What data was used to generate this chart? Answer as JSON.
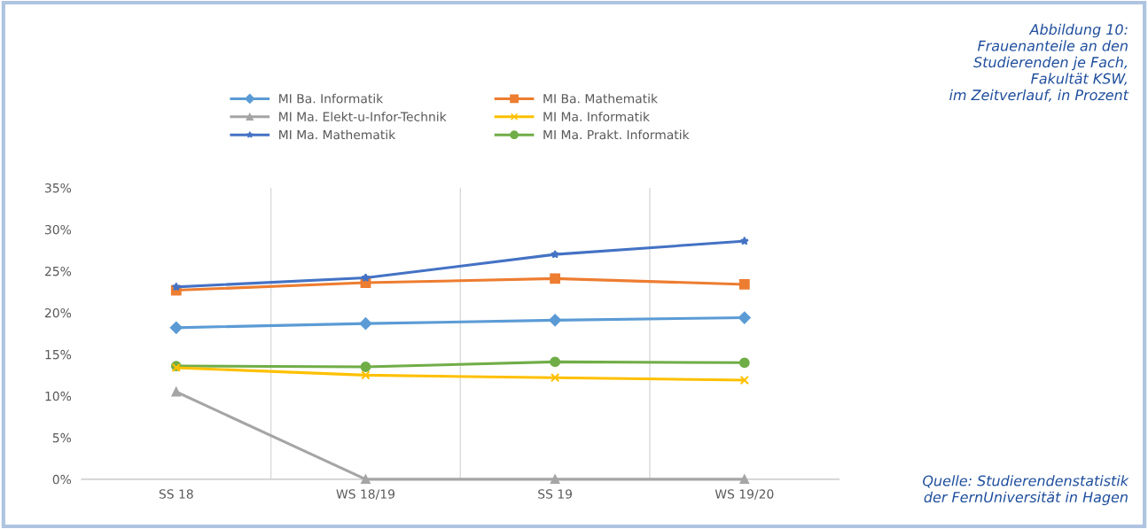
{
  "chart_data": {
    "type": "line",
    "title": "Abbildung 10:\nFrauenanteile an den\nStudierenden je Fach,\nFakultät KSW,\nim Zeitverlauf, in Prozent",
    "annotations": [
      "Quelle: Studierendenstatistik\nder FernUniversität in Hagen"
    ],
    "categories": [
      "SS 18",
      "WS 18/19",
      "SS 19",
      "WS 19/20"
    ],
    "series": [
      {
        "name": "MI Ba. Informatik",
        "color": "#5b9bd5",
        "marker": "diamond",
        "values": [
          18.2,
          18.7,
          19.1,
          19.4
        ]
      },
      {
        "name": "MI Ba. Mathematik",
        "color": "#ed7d31",
        "marker": "square",
        "values": [
          22.7,
          23.6,
          24.1,
          23.4
        ]
      },
      {
        "name": "MI Ma. Elekt-u-Infor-Technik",
        "color": "#a5a5a5",
        "marker": "triangle",
        "values": [
          10.5,
          0,
          0,
          0
        ]
      },
      {
        "name": "MI Ma. Informatik",
        "color": "#ffc000",
        "marker": "cross",
        "values": [
          13.4,
          12.5,
          12.2,
          11.9
        ]
      },
      {
        "name": "MI Ma. Mathematik",
        "color": "#4472c4",
        "marker": "star",
        "values": [
          23.1,
          24.2,
          27.0,
          28.6
        ]
      },
      {
        "name": "MI Ma. Prakt. Informatik",
        "color": "#70ad47",
        "marker": "circle",
        "values": [
          13.6,
          13.5,
          14.1,
          14.0
        ]
      }
    ],
    "ylim": [
      0,
      35
    ],
    "yticks": [
      {
        "value": 0,
        "label": "0%"
      },
      {
        "value": 5,
        "label": "5%"
      },
      {
        "value": 10,
        "label": "10%"
      },
      {
        "value": 15,
        "label": "15%"
      },
      {
        "value": 20,
        "label": "20%"
      },
      {
        "value": 25,
        "label": "25%"
      },
      {
        "value": 30,
        "label": "30%"
      },
      {
        "value": 35,
        "label": "35%"
      }
    ],
    "grid": "x",
    "legend": "top",
    "line_style": "solid"
  }
}
